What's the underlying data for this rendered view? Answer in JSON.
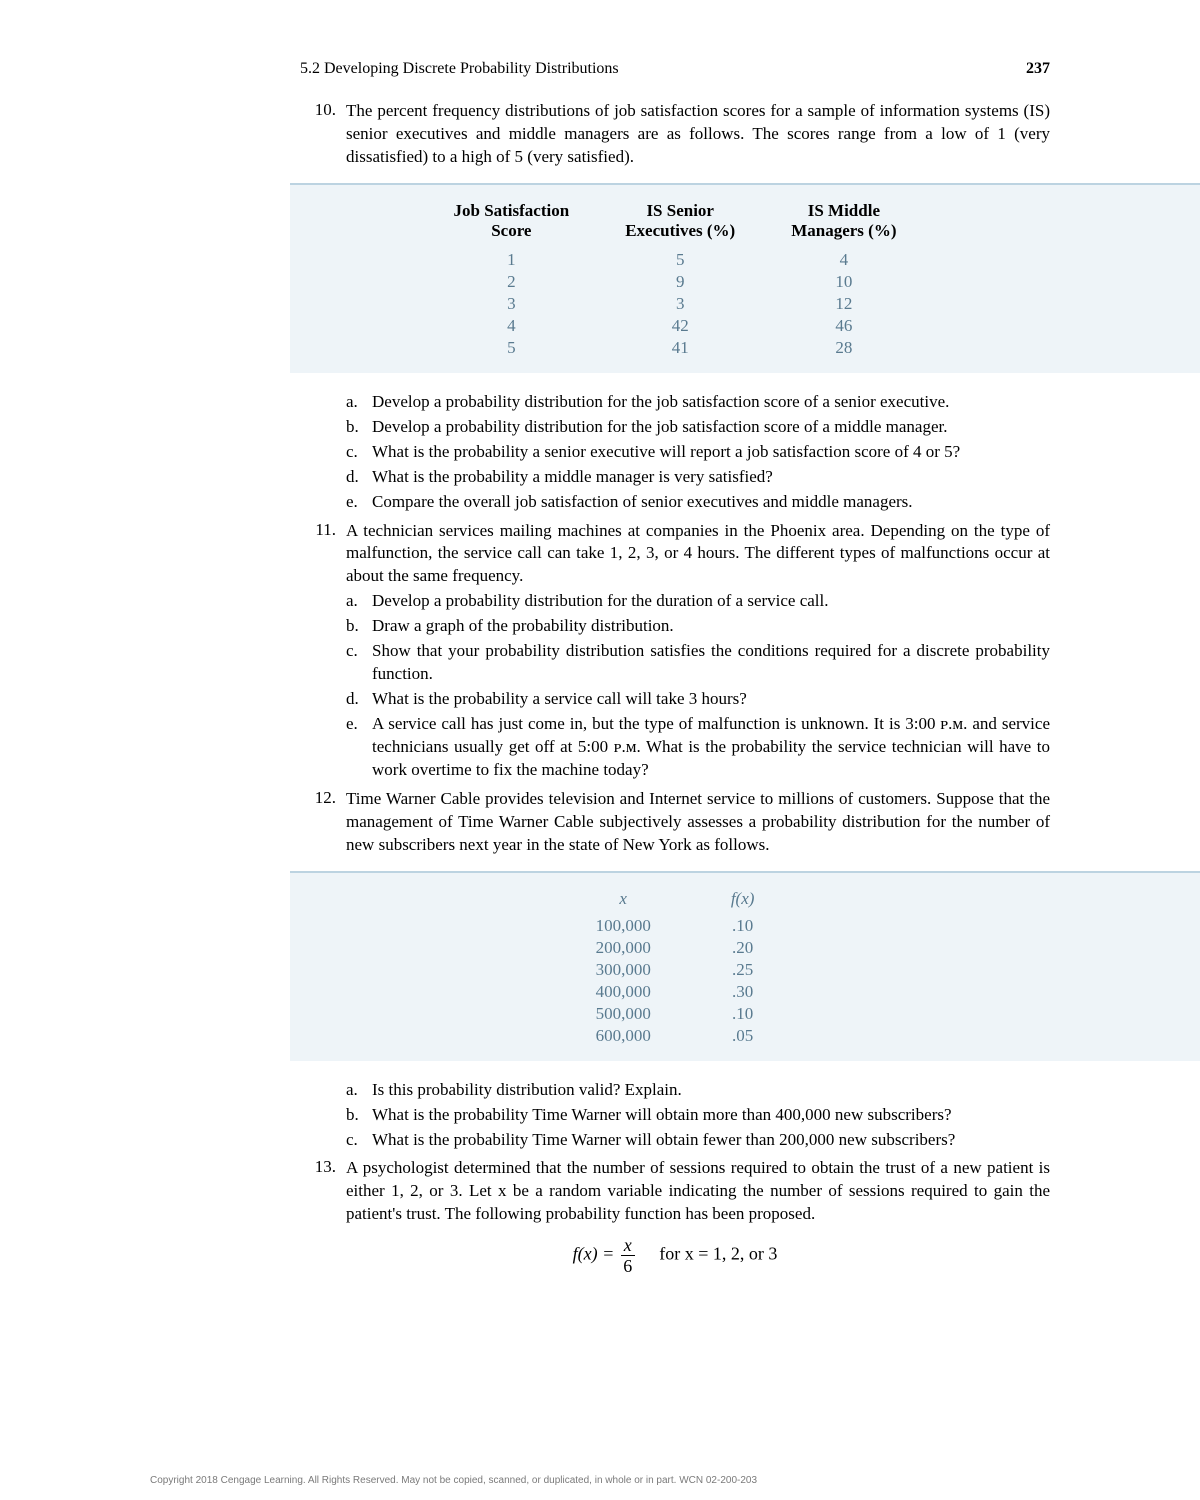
{
  "header": {
    "section": "5.2   Developing Discrete Probability Distributions",
    "page_number": "237"
  },
  "problems": [
    {
      "number": "10.",
      "text": "The percent frequency distributions of job satisfaction scores for a sample of information systems (IS) senior executives and middle managers are as follows. The scores range from a low of 1 (very dissatisfied) to a high of 5 (very satisfied).",
      "subs": [
        {
          "letter": "a.",
          "text": "Develop a probability distribution for the job satisfaction score of a senior executive."
        },
        {
          "letter": "b.",
          "text": "Develop a probability distribution for the job satisfaction score of a middle manager."
        },
        {
          "letter": "c.",
          "text": "What is the probability a senior executive will report a job satisfaction score of 4 or 5?"
        },
        {
          "letter": "d.",
          "text": "What is the probability a middle manager is very satisfied?"
        },
        {
          "letter": "e.",
          "text": "Compare the overall job satisfaction of senior executives and middle managers."
        }
      ]
    },
    {
      "number": "11.",
      "text": "A technician services mailing machines at companies in the Phoenix area. Depending on the type of malfunction, the service call can take 1, 2, 3, or 4 hours. The different types of malfunctions occur at about the same frequency.",
      "subs": [
        {
          "letter": "a.",
          "text": "Develop a probability distribution for the duration of a service call."
        },
        {
          "letter": "b.",
          "text": "Draw a graph of the probability distribution."
        },
        {
          "letter": "c.",
          "text": "Show that your probability distribution satisfies the conditions required for a discrete probability function."
        },
        {
          "letter": "d.",
          "text": "What is the probability a service call will take 3 hours?"
        },
        {
          "letter": "e.",
          "text": "A service call has just come in, but the type of malfunction is unknown. It is 3:00 ᴘ.ᴍ. and service technicians usually get off at 5:00 ᴘ.ᴍ. What is the probability the service technician will have to work overtime to fix the machine today?"
        }
      ]
    },
    {
      "number": "12.",
      "text": "Time Warner Cable provides television and Internet service to millions of customers. Suppose that the management of Time Warner Cable subjectively assesses a probability distribution for the number of new subscribers next year in the state of New York as follows.",
      "subs": [
        {
          "letter": "a.",
          "text": "Is this probability distribution valid? Explain."
        },
        {
          "letter": "b.",
          "text": "What is the probability Time Warner will obtain more than 400,000 new subscribers?"
        },
        {
          "letter": "c.",
          "text": "What is the probability Time Warner will obtain fewer than 200,000 new subscribers?"
        }
      ]
    },
    {
      "number": "13.",
      "text": "A psychologist determined that the number of sessions required to obtain the trust of a new patient is either 1, 2, or 3. Let x be a random variable indicating the number of sessions required to gain the patient's trust. The following probability function has been proposed."
    }
  ],
  "table1": {
    "headers": {
      "c1a": "Job Satisfaction",
      "c1b": "Score",
      "c2a": "IS Senior",
      "c2b": "Executives (%)",
      "c3a": "IS Middle",
      "c3b": "Managers (%)"
    },
    "rows": [
      {
        "score": "1",
        "exec": "5",
        "mgr": "4"
      },
      {
        "score": "2",
        "exec": "9",
        "mgr": "10"
      },
      {
        "score": "3",
        "exec": "3",
        "mgr": "12"
      },
      {
        "score": "4",
        "exec": "42",
        "mgr": "46"
      },
      {
        "score": "5",
        "exec": "41",
        "mgr": "28"
      }
    ]
  },
  "table2": {
    "headers": {
      "x": "x",
      "fx": "f(x)"
    },
    "rows": [
      {
        "x": "100,000",
        "fx": ".10"
      },
      {
        "x": "200,000",
        "fx": ".20"
      },
      {
        "x": "300,000",
        "fx": ".25"
      },
      {
        "x": "400,000",
        "fx": ".30"
      },
      {
        "x": "500,000",
        "fx": ".10"
      },
      {
        "x": "600,000",
        "fx": ".05"
      }
    ]
  },
  "equation": {
    "lhs": "f(x) = ",
    "num": "x",
    "den": "6",
    "cond": "for x = 1, 2, or 3"
  },
  "copyright": "Copyright 2018 Cengage Learning. All Rights Reserved. May not be copied, scanned, or duplicated, in whole or in part.  WCN 02-200-203"
}
